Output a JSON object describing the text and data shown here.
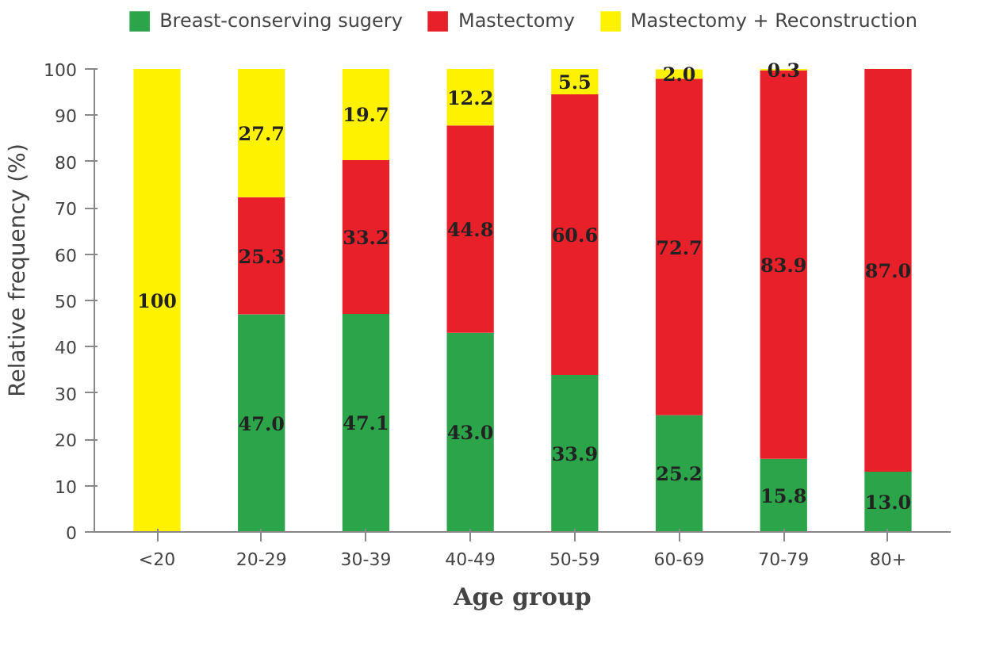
{
  "chart_data": {
    "type": "bar",
    "stacked": true,
    "xlabel": "Age group",
    "ylabel": "Relative frequency (%)",
    "categories": [
      "<20",
      "20-29",
      "30-39",
      "40-49",
      "50-59",
      "60-69",
      "70-79",
      "80+"
    ],
    "series": [
      {
        "name": "Breast-conserving sugery",
        "color": "#2ca44a",
        "values": [
          0,
          47.0,
          47.1,
          43.0,
          33.9,
          25.2,
          15.8,
          13.0
        ],
        "value_labels": [
          null,
          "47.0",
          "47.1",
          "43.0",
          "33.9",
          "25.2",
          "15.8",
          "13.0"
        ]
      },
      {
        "name": "Mastectomy",
        "color": "#e8202a",
        "values": [
          0,
          25.3,
          33.2,
          44.8,
          60.6,
          72.7,
          83.9,
          87.0
        ],
        "value_labels": [
          null,
          "25.3",
          "33.2",
          "44.8",
          "60.6",
          "72.7",
          "83.9",
          "87.0"
        ]
      },
      {
        "name": "Mastectomy + Reconstruction",
        "color": "#fff200",
        "values": [
          100,
          27.7,
          19.7,
          12.2,
          5.5,
          2.0,
          0.3,
          0
        ],
        "value_labels": [
          "100",
          "27.7",
          "19.7",
          "12.2",
          "5.5",
          "2.0",
          "0.3",
          null
        ]
      }
    ],
    "ylim": [
      0,
      100
    ],
    "yticks": [
      0,
      10,
      20,
      30,
      40,
      50,
      60,
      70,
      80,
      90,
      100
    ],
    "grid": false,
    "legend": "top"
  }
}
